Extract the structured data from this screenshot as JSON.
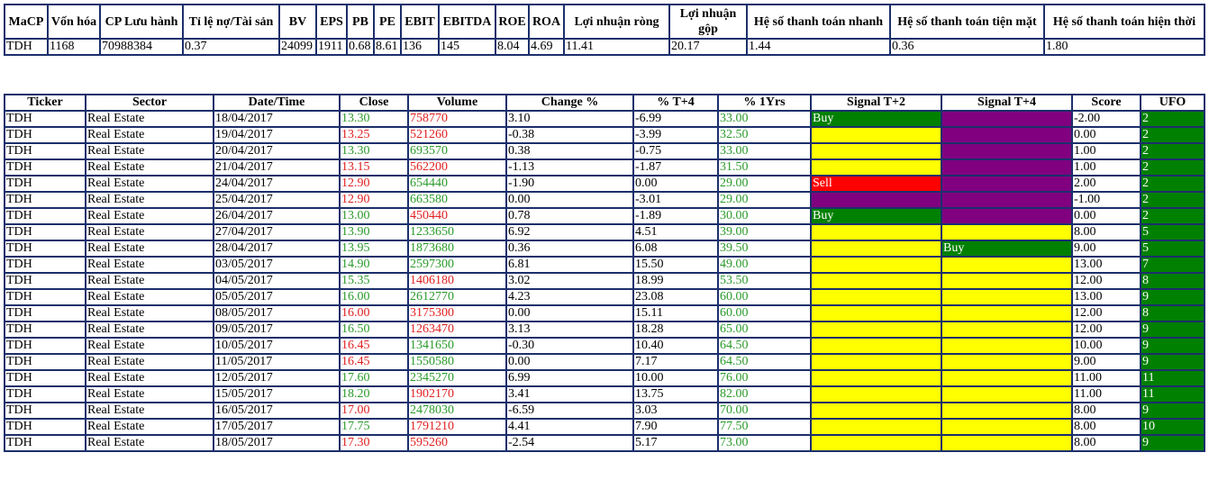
{
  "summary": {
    "headers": [
      "MaCP",
      "Vốn hóa",
      "CP Lưu hành",
      "Tỉ lệ nợ/Tài sản",
      "BV",
      "EPS",
      "PB",
      "PE",
      "EBIT",
      "EBITDA",
      "ROE",
      "ROA",
      "Lợi nhuận ròng",
      "Lợi nhuận gộp",
      "Hệ số thanh toán nhanh",
      "Hệ số thanh toán tiện mặt",
      "Hệ số thanh toán hiện thời"
    ],
    "row": [
      "TDH",
      "1168",
      "70988384",
      "0.37",
      "24099",
      "1911",
      "0.68",
      "8.61",
      "136",
      "145",
      "8.04",
      "4.69",
      "11.41",
      "20.17",
      "1.44",
      "0.36",
      "1.80"
    ]
  },
  "table": {
    "headers": [
      "Ticker",
      "Sector",
      "Date/Time",
      "Close",
      "Volume",
      "Change %",
      "% T+4",
      "% 1Yrs",
      "Signal T+2",
      "Signal T+4",
      "Score",
      "UFO"
    ],
    "rows": [
      [
        "TDH",
        "Real Estate",
        "18/04/2017",
        "13.30",
        "758770",
        "3.10",
        "-6.99",
        "33.00",
        "Buy",
        null,
        "-2.00",
        "2"
      ],
      [
        "TDH",
        "Real Estate",
        "19/04/2017",
        "13.25",
        "521260",
        "-0.38",
        "-3.99",
        "32.50",
        null,
        null,
        "0.00",
        "2"
      ],
      [
        "TDH",
        "Real Estate",
        "20/04/2017",
        "13.30",
        "693570",
        "0.38",
        "-0.75",
        "33.00",
        null,
        null,
        "1.00",
        "2"
      ],
      [
        "TDH",
        "Real Estate",
        "21/04/2017",
        "13.15",
        "562200",
        "-1.13",
        "-1.87",
        "31.50",
        null,
        null,
        "1.00",
        "2"
      ],
      [
        "TDH",
        "Real Estate",
        "24/04/2017",
        "12.90",
        "654440",
        "-1.90",
        "0.00",
        "29.00",
        "Sell",
        null,
        "2.00",
        "2"
      ],
      [
        "TDH",
        "Real Estate",
        "25/04/2017",
        "12.90",
        "663580",
        "0.00",
        "-3.01",
        "29.00",
        null,
        null,
        "-1.00",
        "2"
      ],
      [
        "TDH",
        "Real Estate",
        "26/04/2017",
        "13.00",
        "450440",
        "0.78",
        "-1.89",
        "30.00",
        "Buy",
        null,
        "0.00",
        "2"
      ],
      [
        "TDH",
        "Real Estate",
        "27/04/2017",
        "13.90",
        "1233650",
        "6.92",
        "4.51",
        "39.00",
        null,
        null,
        "8.00",
        "5"
      ],
      [
        "TDH",
        "Real Estate",
        "28/04/2017",
        "13.95",
        "1873680",
        "0.36",
        "6.08",
        "39.50",
        null,
        "Buy",
        "9.00",
        "5"
      ],
      [
        "TDH",
        "Real Estate",
        "03/05/2017",
        "14.90",
        "2597300",
        "6.81",
        "15.50",
        "49.00",
        null,
        null,
        "13.00",
        "7"
      ],
      [
        "TDH",
        "Real Estate",
        "04/05/2017",
        "15.35",
        "1406180",
        "3.02",
        "18.99",
        "53.50",
        null,
        null,
        "12.00",
        "8"
      ],
      [
        "TDH",
        "Real Estate",
        "05/05/2017",
        "16.00",
        "2612770",
        "4.23",
        "23.08",
        "60.00",
        null,
        null,
        "13.00",
        "9"
      ],
      [
        "TDH",
        "Real Estate",
        "08/05/2017",
        "16.00",
        "3175300",
        "0.00",
        "15.11",
        "60.00",
        null,
        null,
        "12.00",
        "8"
      ],
      [
        "TDH",
        "Real Estate",
        "09/05/2017",
        "16.50",
        "1263470",
        "3.13",
        "18.28",
        "65.00",
        null,
        null,
        "12.00",
        "9"
      ],
      [
        "TDH",
        "Real Estate",
        "10/05/2017",
        "16.45",
        "1341650",
        "-0.30",
        "10.40",
        "64.50",
        null,
        null,
        "10.00",
        "9"
      ],
      [
        "TDH",
        "Real Estate",
        "11/05/2017",
        "16.45",
        "1550580",
        "0.00",
        "7.17",
        "64.50",
        null,
        null,
        "9.00",
        "9"
      ],
      [
        "TDH",
        "Real Estate",
        "12/05/2017",
        "17.60",
        "2345270",
        "6.99",
        "10.00",
        "76.00",
        null,
        null,
        "11.00",
        "11"
      ],
      [
        "TDH",
        "Real Estate",
        "15/05/2017",
        "18.20",
        "1902170",
        "3.41",
        "13.75",
        "82.00",
        null,
        null,
        "11.00",
        "11"
      ],
      [
        "TDH",
        "Real Estate",
        "16/05/2017",
        "17.00",
        "2478030",
        "-6.59",
        "3.03",
        "70.00",
        null,
        null,
        "8.00",
        "9"
      ],
      [
        "TDH",
        "Real Estate",
        "17/05/2017",
        "17.75",
        "1791210",
        "4.41",
        "7.90",
        "77.50",
        null,
        null,
        "8.00",
        "10"
      ],
      [
        "TDH",
        "Real Estate",
        "18/05/2017",
        "17.30",
        "595260",
        "-2.54",
        "5.17",
        "73.00",
        null,
        null,
        "8.00",
        "9"
      ]
    ],
    "styles": [
      {
        "close": "#2a9a2a",
        "volume": "#e02020",
        "signal_t2": "#008000",
        "signal_t4": "#800080"
      },
      {
        "close": "#e02020",
        "volume": "#e02020",
        "signal_t2": "#ffff00",
        "signal_t4": "#800080"
      },
      {
        "close": "#2a9a2a",
        "volume": "#2a9a2a",
        "signal_t2": "#ffff00",
        "signal_t4": "#800080"
      },
      {
        "close": "#e02020",
        "volume": "#e02020",
        "signal_t2": "#ffff00",
        "signal_t4": "#800080"
      },
      {
        "close": "#e02020",
        "volume": "#2a9a2a",
        "signal_t2": "#ff0000",
        "signal_t4": "#800080"
      },
      {
        "close": "#e02020",
        "volume": "#2a9a2a",
        "signal_t2": "#800080",
        "signal_t4": "#800080"
      },
      {
        "close": "#2a9a2a",
        "volume": "#e02020",
        "signal_t2": "#008000",
        "signal_t4": "#800080"
      },
      {
        "close": "#2a9a2a",
        "volume": "#2a9a2a",
        "signal_t2": "#ffff00",
        "signal_t4": "#ffff00"
      },
      {
        "close": "#2a9a2a",
        "volume": "#2a9a2a",
        "signal_t2": "#ffff00",
        "signal_t4": "#008000"
      },
      {
        "close": "#2a9a2a",
        "volume": "#2a9a2a",
        "signal_t2": "#ffff00",
        "signal_t4": "#ffff00"
      },
      {
        "close": "#2a9a2a",
        "volume": "#e02020",
        "signal_t2": "#ffff00",
        "signal_t4": "#ffff00"
      },
      {
        "close": "#2a9a2a",
        "volume": "#2a9a2a",
        "signal_t2": "#ffff00",
        "signal_t4": "#ffff00"
      },
      {
        "close": "#e02020",
        "volume": "#e02020",
        "signal_t2": "#ffff00",
        "signal_t4": "#ffff00"
      },
      {
        "close": "#2a9a2a",
        "volume": "#e02020",
        "signal_t2": "#ffff00",
        "signal_t4": "#ffff00"
      },
      {
        "close": "#e02020",
        "volume": "#2a9a2a",
        "signal_t2": "#ffff00",
        "signal_t4": "#ffff00"
      },
      {
        "close": "#e02020",
        "volume": "#2a9a2a",
        "signal_t2": "#ffff00",
        "signal_t4": "#ffff00"
      },
      {
        "close": "#2a9a2a",
        "volume": "#2a9a2a",
        "signal_t2": "#ffff00",
        "signal_t4": "#ffff00"
      },
      {
        "close": "#2a9a2a",
        "volume": "#e02020",
        "signal_t2": "#ffff00",
        "signal_t4": "#ffff00"
      },
      {
        "close": "#e02020",
        "volume": "#2a9a2a",
        "signal_t2": "#ffff00",
        "signal_t4": "#ffff00"
      },
      {
        "close": "#2a9a2a",
        "volume": "#e02020",
        "signal_t2": "#ffff00",
        "signal_t4": "#ffff00"
      },
      {
        "close": "#e02020",
        "volume": "#e02020",
        "signal_t2": "#ffff00",
        "signal_t4": "#ffff00"
      }
    ]
  }
}
